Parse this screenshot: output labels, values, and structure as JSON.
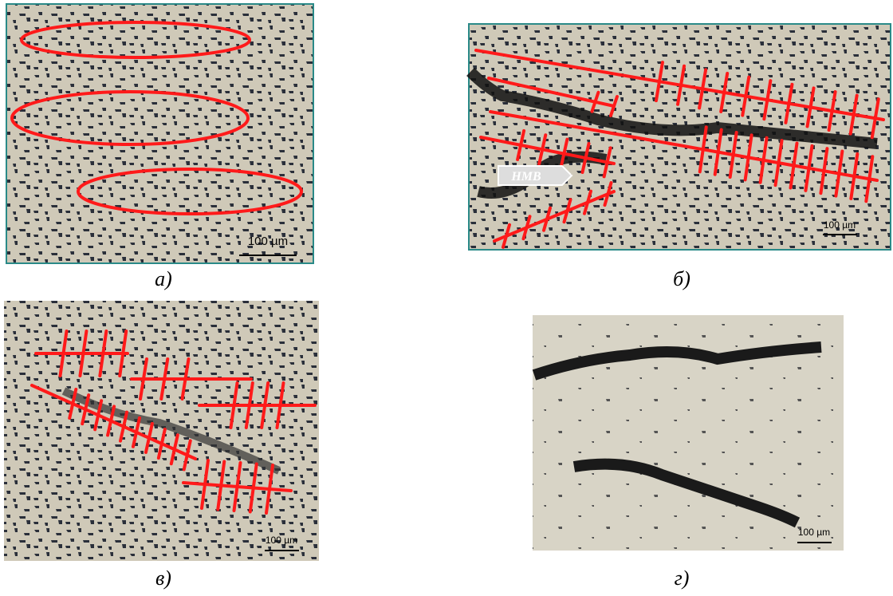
{
  "panels": [
    {
      "label": "а)",
      "scale": "100 µm"
    },
    {
      "label": "б)",
      "scale": "100 µm",
      "arrow": "НМВ"
    },
    {
      "label": "в)",
      "scale": "100 µm"
    },
    {
      "label": "г)",
      "scale": "100 µm"
    }
  ]
}
